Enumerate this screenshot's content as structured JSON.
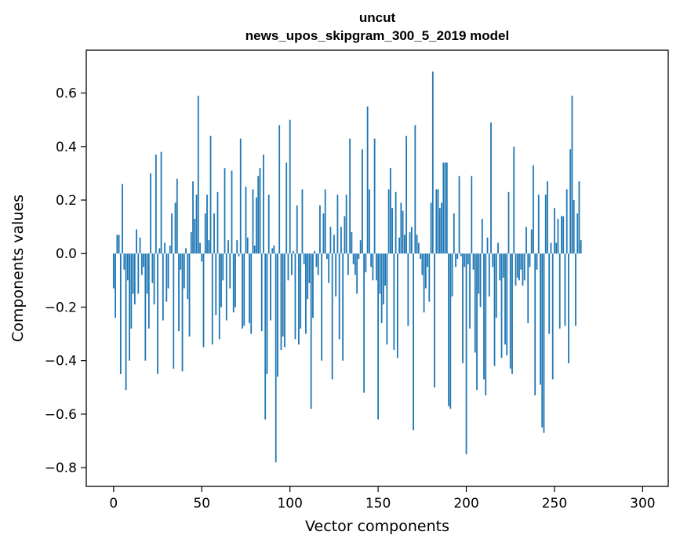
{
  "chart_data": {
    "type": "bar",
    "title": "uncut",
    "subtitle": "news_upos_skipgram_300_5_2019 model",
    "xlabel": "Vector components",
    "ylabel": "Components values",
    "xlim": [
      -15.5,
      314.5
    ],
    "ylim": [
      -0.87,
      0.76
    ],
    "xticks": [
      0,
      50,
      100,
      150,
      200,
      250,
      300
    ],
    "xtick_labels": [
      "0",
      "50",
      "100",
      "150",
      "200",
      "250",
      "300"
    ],
    "yticks": [
      -0.8,
      -0.6,
      -0.4,
      -0.2,
      0.0,
      0.2,
      0.4,
      0.6
    ],
    "ytick_labels": [
      "−0.8",
      "−0.6",
      "−0.4",
      "−0.2",
      "0.0",
      "0.2",
      "0.4",
      "0.6"
    ],
    "grid": false,
    "color": "#1f77b4",
    "values": [
      -0.13,
      -0.24,
      0.07,
      0.07,
      -0.45,
      0.26,
      -0.06,
      -0.51,
      -0.1,
      -0.4,
      -0.28,
      -0.15,
      -0.19,
      0.09,
      -0.15,
      0.06,
      -0.08,
      -0.05,
      -0.4,
      -0.15,
      -0.28,
      0.3,
      -0.11,
      -0.19,
      0.37,
      -0.45,
      0.02,
      0.38,
      -0.25,
      0.04,
      -0.18,
      -0.13,
      0.03,
      0.15,
      -0.43,
      0.19,
      0.28,
      -0.29,
      -0.06,
      -0.44,
      -0.13,
      0.02,
      -0.17,
      -0.31,
      0.08,
      0.27,
      0.13,
      0.22,
      0.59,
      0.04,
      -0.03,
      -0.35,
      0.15,
      0.22,
      0.05,
      0.44,
      -0.34,
      0.15,
      -0.23,
      0.23,
      -0.32,
      -0.2,
      -0.1,
      0.32,
      -0.25,
      0.05,
      -0.13,
      0.31,
      -0.22,
      -0.2,
      0.05,
      -0.01,
      0.43,
      -0.28,
      -0.27,
      0.25,
      0.06,
      -0.26,
      -0.3,
      0.24,
      0.03,
      0.21,
      0.29,
      0.32,
      -0.29,
      0.37,
      -0.62,
      -0.45,
      0.22,
      -0.25,
      0.02,
      0.03,
      -0.78,
      -0.46,
      0.48,
      -0.36,
      -0.31,
      -0.35,
      0.34,
      -0.1,
      0.5,
      -0.08,
      0.01,
      -0.32,
      0.18,
      -0.34,
      -0.28,
      0.24,
      -0.04,
      -0.3,
      -0.17,
      -0.11,
      -0.58,
      -0.24,
      0.01,
      -0.05,
      -0.08,
      0.18,
      -0.4,
      0.15,
      0.24,
      -0.02,
      -0.11,
      0.1,
      -0.47,
      0.07,
      -0.16,
      0.22,
      -0.32,
      0.1,
      -0.4,
      0.14,
      0.22,
      -0.08,
      0.43,
      0.08,
      -0.04,
      -0.08,
      -0.15,
      -0.02,
      0.05,
      0.39,
      -0.52,
      -0.07,
      0.55,
      0.24,
      -0.05,
      -0.1,
      0.43,
      -0.1,
      -0.62,
      -0.15,
      -0.26,
      -0.19,
      -0.12,
      -0.34,
      0.24,
      0.32,
      0.17,
      -0.36,
      0.23,
      -0.39,
      0.06,
      0.19,
      0.16,
      0.07,
      0.44,
      -0.27,
      0.08,
      0.1,
      -0.66,
      0.48,
      0.07,
      0.04,
      -0.02,
      -0.08,
      -0.22,
      -0.13,
      -0.05,
      -0.18,
      0.19,
      0.68,
      -0.5,
      0.24,
      0.24,
      0.17,
      0.19,
      0.34,
      0.34,
      0.34,
      -0.57,
      -0.58,
      -0.16,
      0.15,
      -0.05,
      -0.02,
      0.29,
      -0.01,
      -0.41,
      -0.05,
      -0.75,
      -0.04,
      -0.28,
      0.29,
      -0.06,
      -0.37,
      -0.51,
      -0.15,
      -0.2,
      0.13,
      -0.47,
      -0.53,
      0.06,
      -0.16,
      0.49,
      -0.05,
      -0.42,
      -0.24,
      0.04,
      -0.1,
      -0.39,
      -0.09,
      -0.34,
      -0.38,
      0.23,
      -0.43,
      -0.45,
      0.4,
      -0.12,
      -0.09,
      -0.1,
      -0.06,
      -0.12,
      -0.1,
      0.1,
      -0.26,
      -0.05,
      0.09,
      0.33,
      -0.53,
      -0.06,
      0.22,
      -0.49,
      -0.65,
      -0.67,
      0.22,
      0.27,
      -0.3,
      0.04,
      -0.47,
      0.17,
      0.04,
      0.13,
      -0.28,
      0.14,
      0.14,
      -0.27,
      0.24,
      -0.41,
      0.39,
      0.59,
      0.2,
      -0.27,
      0.15,
      0.27,
      0.05
    ]
  }
}
